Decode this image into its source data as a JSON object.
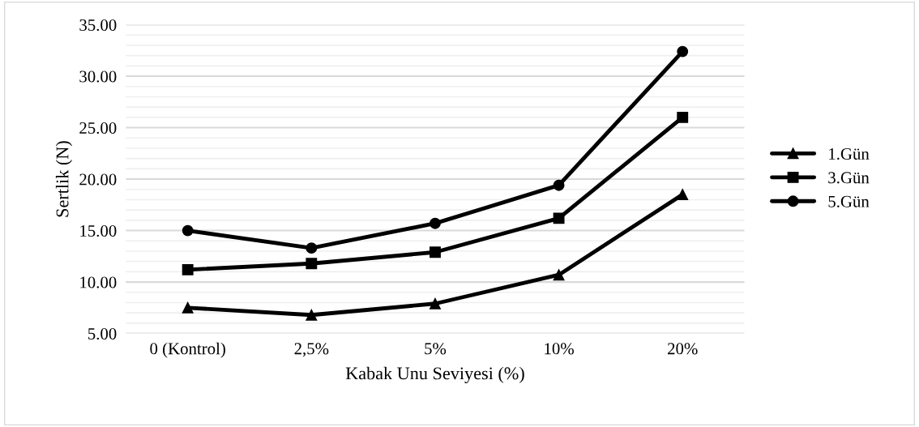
{
  "chart_data": {
    "type": "line",
    "xlabel": "Kabak Unu Seviyesi (%)",
    "ylabel": "Sertlik (N)",
    "categories": [
      "0 (Kontrol)",
      "2,5%",
      "5%",
      "10%",
      "20%"
    ],
    "series": [
      {
        "name": "1.Gün",
        "color": "#000000",
        "marker": "triangle",
        "values": [
          7.5,
          6.8,
          7.9,
          10.7,
          18.5
        ]
      },
      {
        "name": "3.Gün",
        "color": "#000000",
        "marker": "square",
        "values": [
          11.2,
          11.8,
          12.9,
          16.2,
          26.0
        ]
      },
      {
        "name": "5.Gün",
        "color": "#000000",
        "marker": "circle",
        "values": [
          15.0,
          13.3,
          15.7,
          19.4,
          32.4
        ]
      }
    ],
    "ylim": [
      5,
      35
    ],
    "yticks": [
      {
        "value": 5,
        "label": "5.00"
      },
      {
        "value": 6,
        "label": null
      },
      {
        "value": 7,
        "label": null
      },
      {
        "value": 8,
        "label": null
      },
      {
        "value": 9,
        "label": null
      },
      {
        "value": 10,
        "label": "10.00"
      },
      {
        "value": 11,
        "label": null
      },
      {
        "value": 12,
        "label": null
      },
      {
        "value": 13,
        "label": null
      },
      {
        "value": 14,
        "label": null
      },
      {
        "value": 15,
        "label": "15.00"
      },
      {
        "value": 16,
        "label": null
      },
      {
        "value": 17,
        "label": null
      },
      {
        "value": 18,
        "label": null
      },
      {
        "value": 19,
        "label": null
      },
      {
        "value": 20,
        "label": "20.00"
      },
      {
        "value": 21,
        "label": null
      },
      {
        "value": 22,
        "label": null
      },
      {
        "value": 23,
        "label": null
      },
      {
        "value": 24,
        "label": null
      },
      {
        "value": 25,
        "label": "25.00"
      },
      {
        "value": 26,
        "label": null
      },
      {
        "value": 27,
        "label": null
      },
      {
        "value": 28,
        "label": null
      },
      {
        "value": 29,
        "label": null
      },
      {
        "value": 30,
        "label": "30.00"
      },
      {
        "value": 31,
        "label": null
      },
      {
        "value": 32,
        "label": null
      },
      {
        "value": 33,
        "label": null
      },
      {
        "value": 34,
        "label": null
      },
      {
        "value": 35,
        "label": "35.00"
      }
    ],
    "grid": "y",
    "legend": "right",
    "line_style": "solid"
  }
}
